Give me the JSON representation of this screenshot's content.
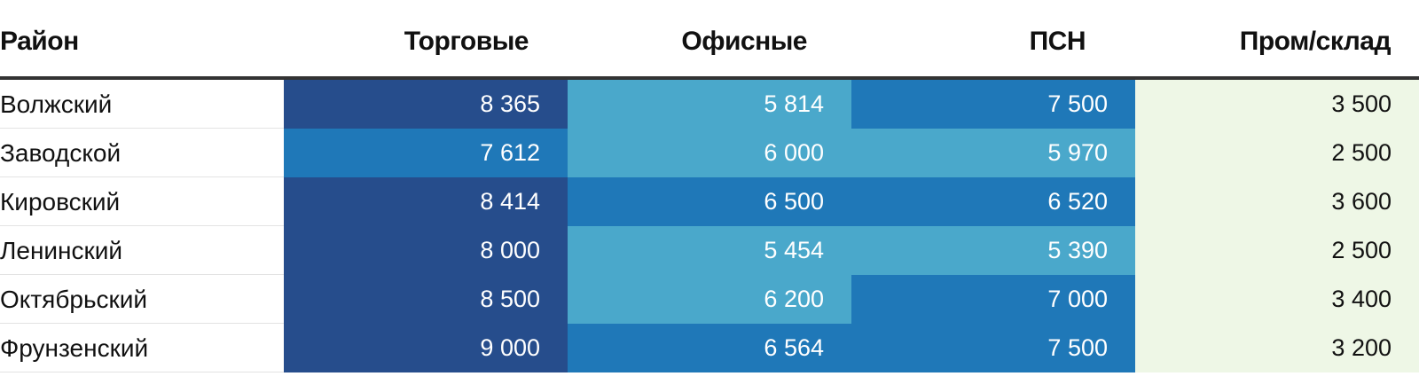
{
  "chart_data": {
    "type": "heatmap",
    "columns": [
      "Район",
      "Торговые",
      "Офисные",
      "ПСН",
      "Пром/склад"
    ],
    "rows": [
      {
        "label": "Волжский",
        "values": [
          "8 365",
          "5 814",
          "7 500",
          "3 500"
        ],
        "numbers": [
          8365,
          5814,
          7500,
          3500
        ]
      },
      {
        "label": "Заводской",
        "values": [
          "7 612",
          "6 000",
          "5 970",
          "2 500"
        ],
        "numbers": [
          7612,
          6000,
          5970,
          2500
        ]
      },
      {
        "label": "Кировский",
        "values": [
          "8 414",
          "6 500",
          "6 520",
          "3 600"
        ],
        "numbers": [
          8414,
          6500,
          6520,
          3600
        ]
      },
      {
        "label": "Ленинский",
        "values": [
          "8 000",
          "5 454",
          "5 390",
          "2 500"
        ],
        "numbers": [
          8000,
          5454,
          5390,
          2500
        ]
      },
      {
        "label": "Октябрьский",
        "values": [
          "8 500",
          "6 200",
          "7 000",
          "3 400"
        ],
        "numbers": [
          8500,
          6200,
          7000,
          3400
        ]
      },
      {
        "label": "Фрунзенский",
        "values": [
          "9 000",
          "6 564",
          "7 500",
          "3 200"
        ],
        "numbers": [
          9000,
          6564,
          7500,
          3200
        ]
      }
    ],
    "color_scale": [
      {
        "min": 0,
        "color": "#eef7e6",
        "text": "#111111"
      },
      {
        "min": 5000,
        "color": "#4aa8cb",
        "text": "#ffffff"
      },
      {
        "min": 6500,
        "color": "#1f78b8",
        "text": "#ffffff"
      },
      {
        "min": 8000,
        "color": "#264d8c",
        "text": "#ffffff"
      }
    ]
  }
}
